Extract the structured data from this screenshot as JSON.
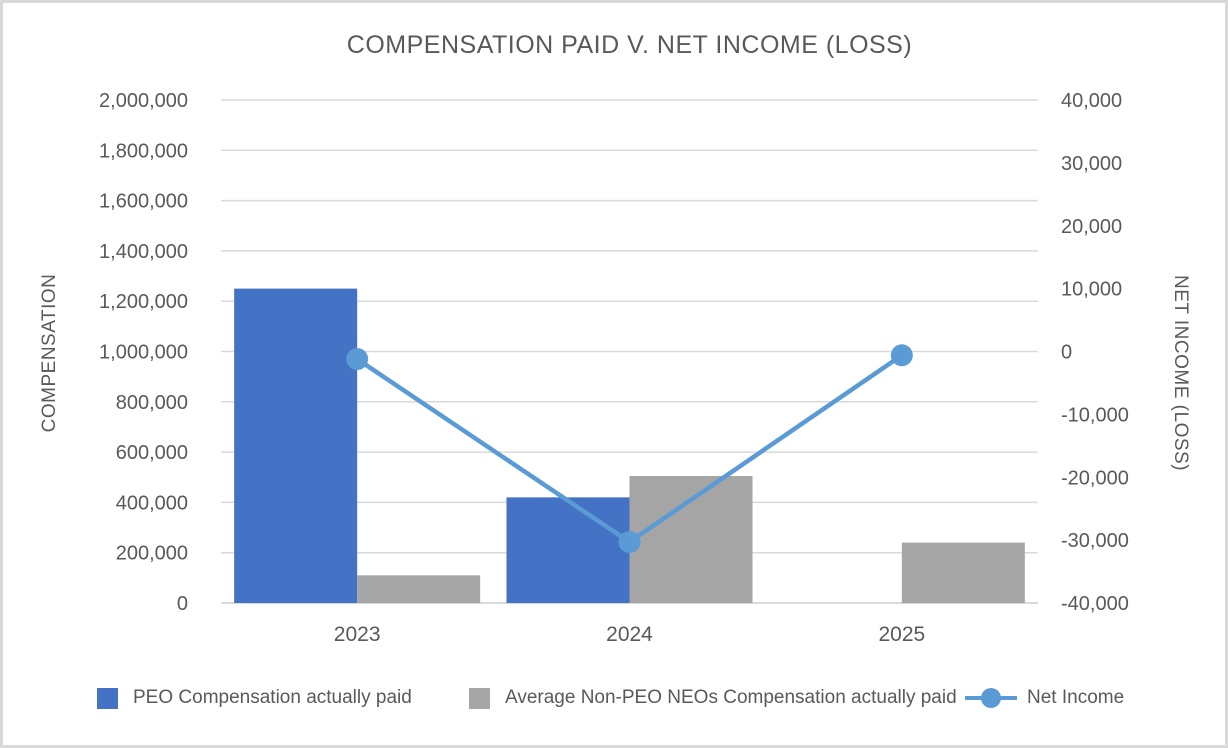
{
  "chart_data": {
    "type": "combo",
    "title": "COMPENSATION PAID V. NET INCOME (LOSS)",
    "categories": [
      "2023",
      "2024",
      "2025"
    ],
    "series": [
      {
        "name": "PEO Compensation actually paid",
        "type": "bar",
        "axis": "left",
        "color": "#4472C4",
        "values": [
          1250000,
          420000,
          0
        ]
      },
      {
        "name": "Average Non-PEO NEOs Compensation actually paid",
        "type": "bar",
        "axis": "left",
        "color": "#A5A5A5",
        "values": [
          110000,
          505000,
          240000
        ]
      },
      {
        "name": "Net Income",
        "type": "line",
        "axis": "right",
        "color": "#5B9BD5",
        "values": [
          -1200,
          -30300,
          -600
        ]
      }
    ],
    "left_axis": {
      "label": "COMPENSATION",
      "min": 0,
      "max": 2000000,
      "step": 200000,
      "ticks": [
        2000000,
        1800000,
        1600000,
        1400000,
        1200000,
        1000000,
        800000,
        600000,
        400000,
        200000,
        0
      ]
    },
    "right_axis": {
      "label": "NET INCOME (LOSS)",
      "min": -40000,
      "max": 40000,
      "step": 10000,
      "ticks": [
        40000,
        30000,
        20000,
        10000,
        0,
        -10000,
        -20000,
        -30000,
        -40000
      ]
    },
    "grid": true,
    "legend_position": "bottom",
    "colors": {
      "grid": "#D9D9D9",
      "axis_text": "#595959",
      "title_text": "#595959",
      "background": "#FFFFFF",
      "frame_border": "#D9D9D9"
    }
  }
}
